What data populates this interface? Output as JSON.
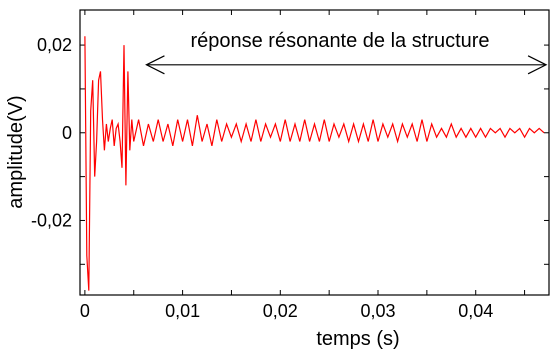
{
  "chart_data": {
    "type": "line",
    "title": "",
    "xlabel": "temps (s)",
    "ylabel": "amplitude(V)",
    "xlim": [
      -0.0005,
      0.0475
    ],
    "ylim": [
      -0.037,
      0.028
    ],
    "x_ticks": [
      0,
      0.01,
      0.02,
      0.03,
      0.04
    ],
    "x_tick_labels": [
      "0",
      "0,01",
      "0,02",
      "0,03",
      "0,04"
    ],
    "y_ticks": [
      -0.02,
      0,
      0.02
    ],
    "y_tick_labels": [
      "-0,02",
      "0",
      "0,02"
    ],
    "grid": false,
    "annotation": {
      "text": "réponse résonante de la structure",
      "arrow_from_x": 0.0063,
      "arrow_to_x": 0.0472,
      "arrow_y": 0.0155
    },
    "series": [
      {
        "color": "#ff0000",
        "x": [
          0,
          0.0002,
          0.0004,
          0.0006,
          0.0008,
          0.001,
          0.0012,
          0.0014,
          0.0016,
          0.0018,
          0.002,
          0.0022,
          0.0024,
          0.0026,
          0.0028,
          0.003,
          0.0032,
          0.0034,
          0.0036,
          0.0038,
          0.004,
          0.0042,
          0.0044,
          0.0046,
          0.0048,
          0.005,
          0.0055,
          0.006,
          0.0065,
          0.007,
          0.0075,
          0.008,
          0.0085,
          0.009,
          0.0095,
          0.01,
          0.0105,
          0.011,
          0.0115,
          0.012,
          0.0125,
          0.013,
          0.0135,
          0.014,
          0.0145,
          0.015,
          0.0155,
          0.016,
          0.0165,
          0.017,
          0.0175,
          0.018,
          0.0185,
          0.019,
          0.0195,
          0.02,
          0.0205,
          0.021,
          0.0215,
          0.022,
          0.0225,
          0.023,
          0.0235,
          0.024,
          0.0245,
          0.025,
          0.0255,
          0.026,
          0.0265,
          0.027,
          0.0275,
          0.028,
          0.0285,
          0.029,
          0.0295,
          0.03,
          0.0305,
          0.031,
          0.0315,
          0.032,
          0.0325,
          0.033,
          0.0335,
          0.034,
          0.0345,
          0.035,
          0.0355,
          0.036,
          0.0365,
          0.037,
          0.0375,
          0.038,
          0.0385,
          0.039,
          0.0395,
          0.04,
          0.0405,
          0.041,
          0.0415,
          0.042,
          0.0425,
          0.043,
          0.0435,
          0.044,
          0.0445,
          0.045,
          0.0455,
          0.046,
          0.0465,
          0.047
        ],
        "y": [
          0.022,
          -0.028,
          -0.036,
          0.005,
          0.012,
          -0.01,
          -0.002,
          0.012,
          0.014,
          0.003,
          -0.004,
          0.002,
          -0.002,
          0.001,
          0.003,
          -0.003,
          0.001,
          0.002,
          -0.002,
          -0.008,
          0.02,
          -0.012,
          0.014,
          -0.004,
          0.003,
          -0.002,
          0.003,
          -0.003,
          0.002,
          -0.002,
          0.003,
          -0.002,
          0.002,
          -0.003,
          0.003,
          -0.002,
          0.003,
          -0.003,
          0.004,
          -0.002,
          0.002,
          -0.003,
          0.003,
          -0.002,
          0.002,
          -0.001,
          0.002,
          -0.002,
          0.002,
          -0.002,
          0.003,
          -0.002,
          0.002,
          -0.001,
          0.002,
          -0.002,
          0.003,
          -0.002,
          0.002,
          -0.002,
          0.003,
          -0.002,
          0.002,
          -0.002,
          0.003,
          -0.002,
          0.002,
          -0.001,
          0.002,
          -0.002,
          0.002,
          -0.002,
          0.002,
          -0.002,
          0.003,
          -0.002,
          0.002,
          -0.001,
          0.002,
          -0.002,
          0.002,
          -0.001,
          0.002,
          -0.002,
          0.003,
          -0.002,
          0.002,
          -0.001,
          0.001,
          -0.001,
          0.002,
          -0.001,
          0.001,
          -0.001,
          0.001,
          -0.001,
          0.001,
          -0.001,
          0.001,
          0,
          0.001,
          -0.001,
          0.001,
          0,
          0.001,
          -0.001,
          0.001,
          0,
          0.001,
          0
        ]
      }
    ]
  }
}
